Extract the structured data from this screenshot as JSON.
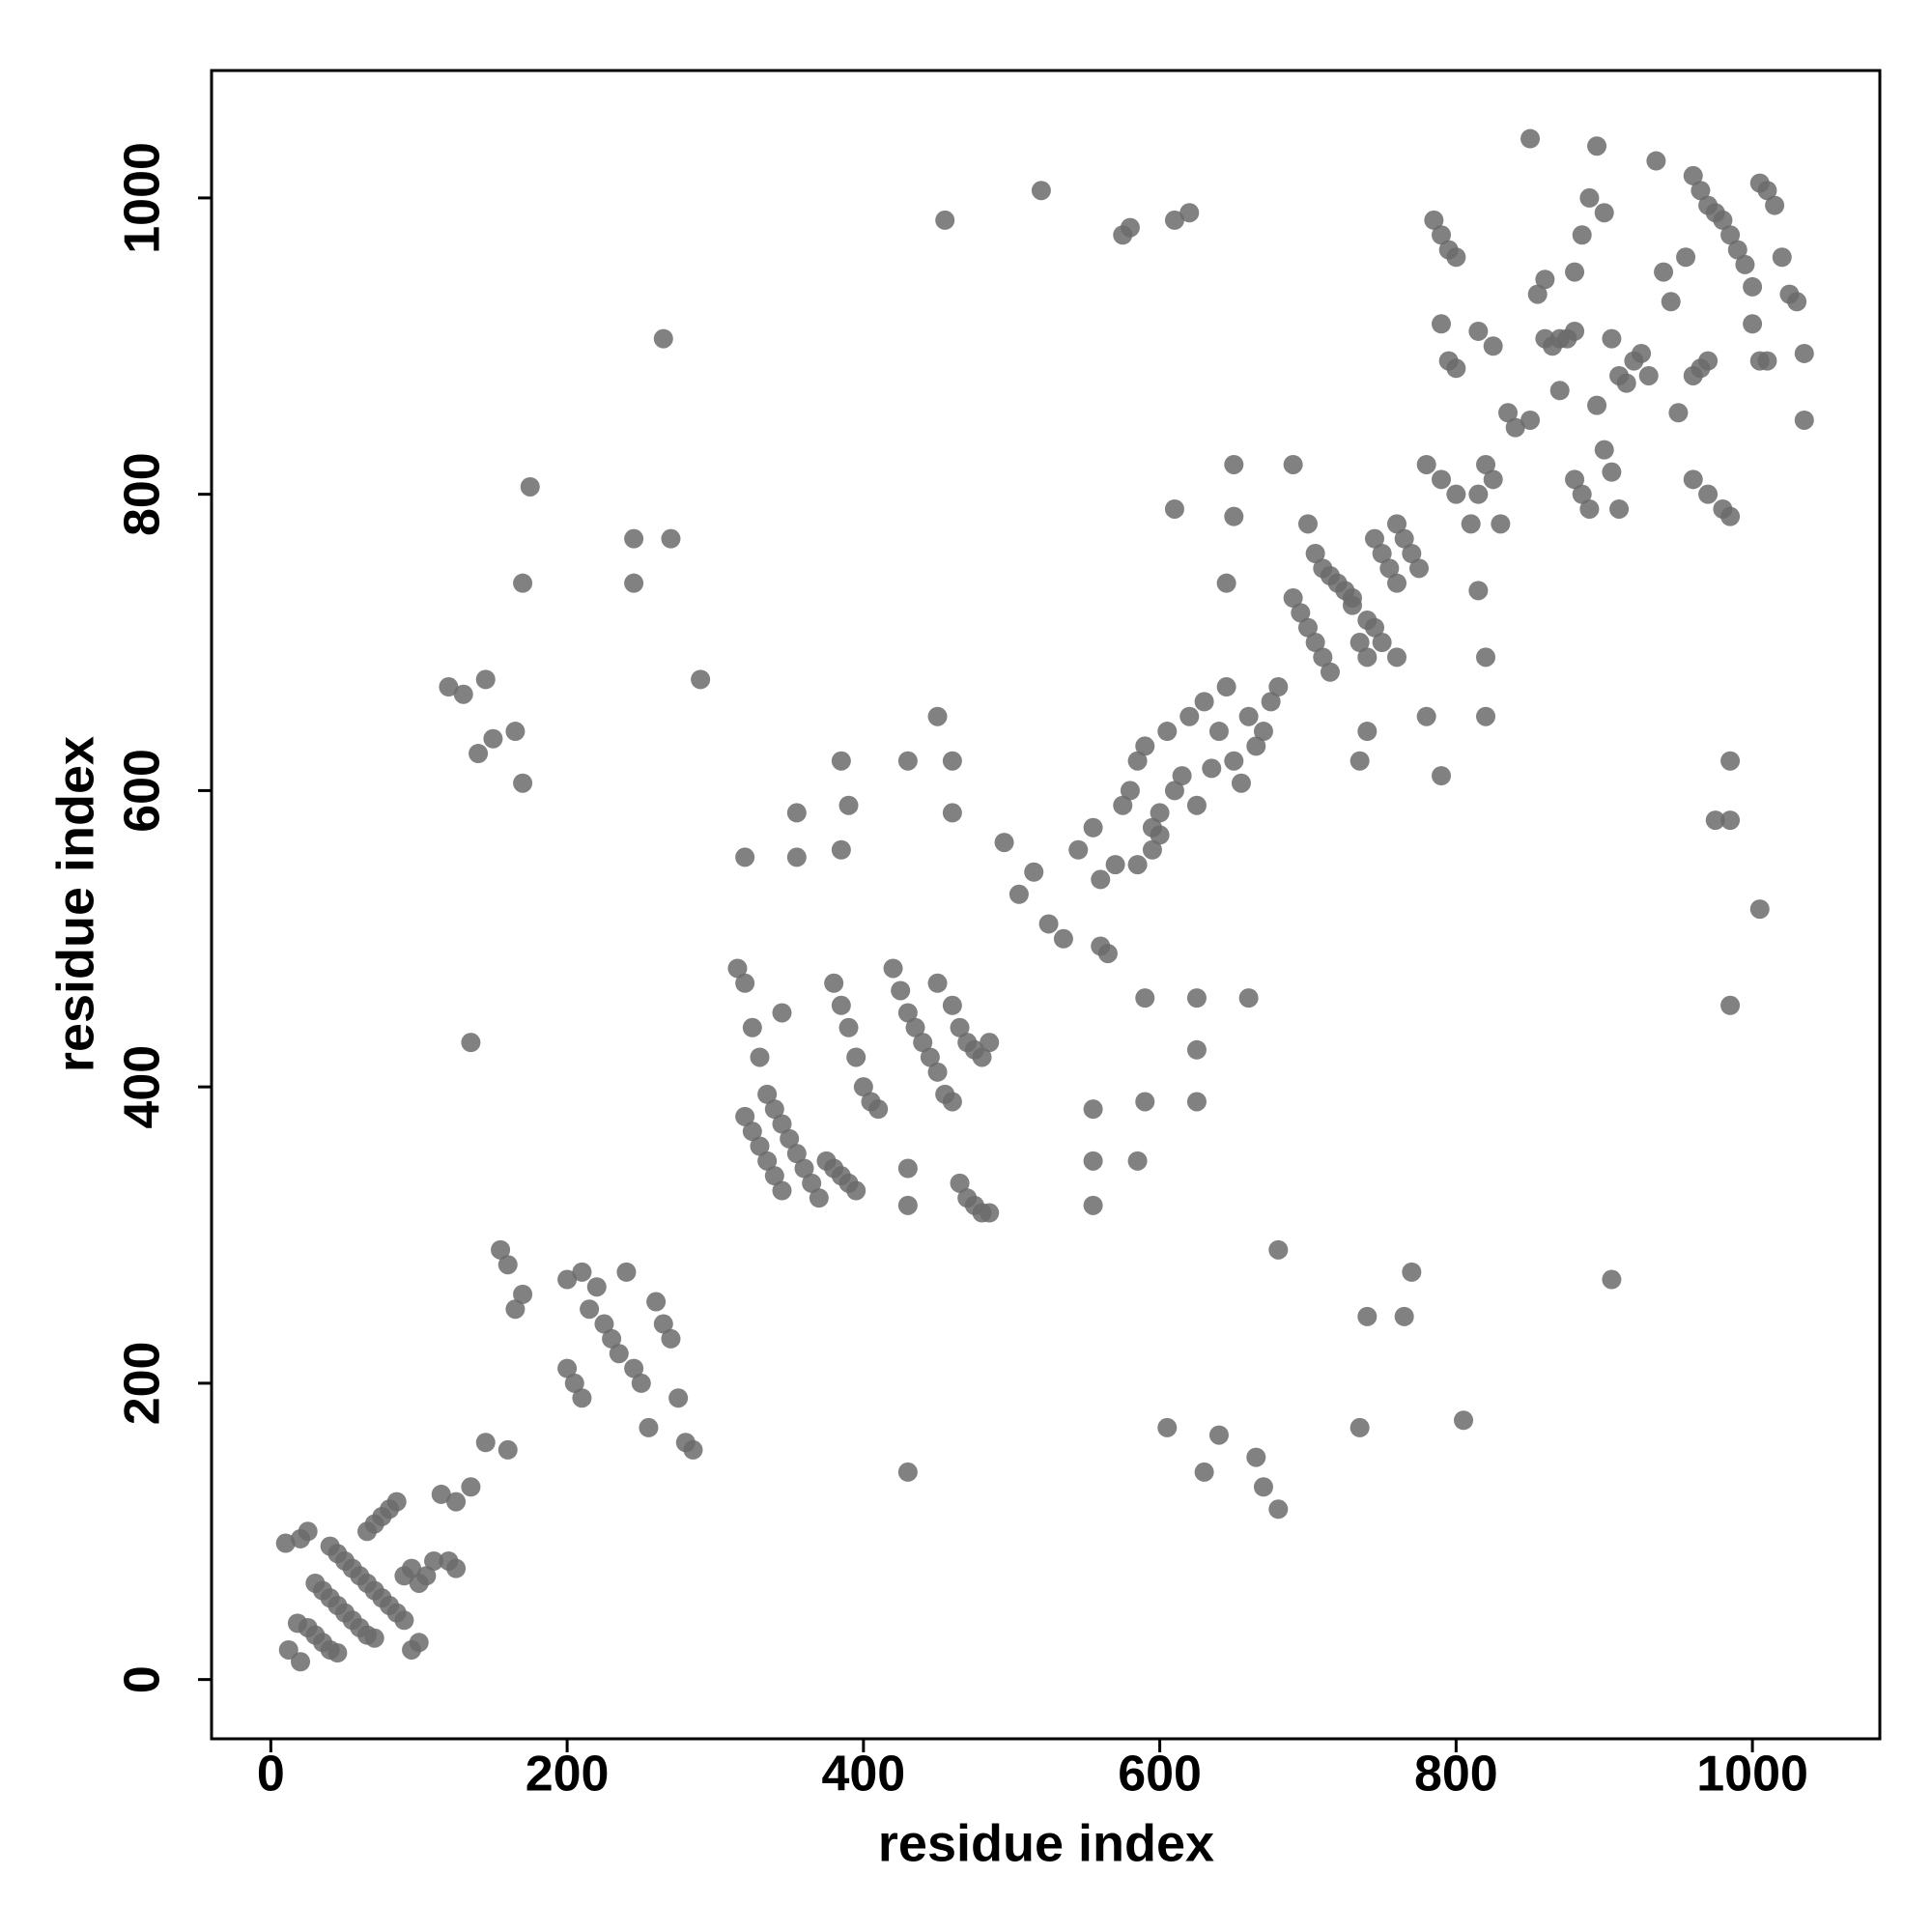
{
  "chart_data": {
    "type": "scatter",
    "x_label": "residue index",
    "y_label": "residue index",
    "xlim": [
      -40,
      1086
    ],
    "ylim": [
      -40,
      1086
    ],
    "xticks": [
      0,
      200,
      400,
      600,
      800,
      1000
    ],
    "yticks": [
      0,
      200,
      400,
      600,
      800,
      1000
    ],
    "grid": false,
    "color": "#6b6b6b",
    "x": [
      12,
      20,
      18,
      25,
      30,
      35,
      40,
      45,
      10,
      20,
      25,
      30,
      35,
      40,
      45,
      50,
      55,
      60,
      65,
      70,
      40,
      45,
      50,
      55,
      60,
      65,
      70,
      75,
      80,
      85,
      90,
      95,
      100,
      105,
      110,
      120,
      125,
      65,
      70,
      75,
      80,
      85,
      90,
      95,
      100,
      115,
      125,
      135,
      145,
      160,
      155,
      160,
      165,
      170,
      200,
      205,
      210,
      215,
      220,
      225,
      230,
      235,
      240,
      245,
      250,
      255,
      260,
      265,
      270,
      275,
      280,
      285,
      200,
      210,
      315,
      320,
      325,
      330,
      335,
      340,
      345,
      350,
      355,
      360,
      365,
      370,
      375,
      380,
      385,
      390,
      395,
      320,
      325,
      330,
      335,
      340,
      345,
      380,
      385,
      390,
      395,
      400,
      405,
      410,
      420,
      425,
      430,
      435,
      440,
      445,
      450,
      455,
      460,
      465,
      470,
      475,
      480,
      485,
      450,
      460,
      465,
      470,
      475,
      480,
      485,
      430,
      430,
      345,
      385,
      390,
      385,
      355,
      355,
      320,
      430,
      460,
      460,
      450,
      430,
      495,
      505,
      515,
      525,
      535,
      545,
      555,
      560,
      570,
      575,
      580,
      585,
      590,
      595,
      600,
      605,
      610,
      615,
      620,
      625,
      630,
      635,
      640,
      645,
      650,
      655,
      660,
      665,
      670,
      675,
      680,
      560,
      565,
      585,
      595,
      600,
      690,
      700,
      705,
      710,
      715,
      720,
      725,
      730,
      735,
      740,
      745,
      750,
      755,
      760,
      765,
      770,
      775,
      690,
      695,
      700,
      705,
      710,
      715,
      730,
      740,
      745,
      750,
      760,
      780,
      790,
      800,
      810,
      815,
      820,
      825,
      830,
      760,
      780,
      790,
      815,
      820,
      820,
      740,
      735,
      650,
      645,
      650,
      610,
      785,
      790,
      795,
      800,
      790,
      795,
      800,
      815,
      825,
      835,
      840,
      850,
      855,
      860,
      865,
      870,
      875,
      880,
      885,
      890,
      895,
      900,
      905,
      910,
      915,
      920,
      925,
      930,
      935,
      940,
      945,
      950,
      955,
      960,
      965,
      970,
      975,
      980,
      985,
      990,
      995,
      1000,
      1005,
      1010,
      1015,
      1020,
      1025,
      1030,
      1035,
      1035,
      960,
      965,
      970,
      960,
      970,
      980,
      985,
      880,
      885,
      890,
      900,
      905,
      910,
      895,
      850,
      1000,
      1005,
      1010,
      860,
      870,
      880,
      985,
      985,
      975,
      1005,
      985,
      905,
      805,
      770,
      765,
      740,
      735,
      680,
      680,
      670,
      665,
      640,
      630,
      605,
      620,
      610,
      580,
      575,
      520,
      455,
      265,
      270,
      245,
      245,
      175,
      170,
      170,
      165,
      150,
      140,
      120,
      130,
      145,
      135,
      290,
      590,
      625,
      625,
      625,
      590,
      585,
      555,
      555,
      555,
      660
    ],
    "values": [
      20,
      12,
      38,
      35,
      30,
      25,
      20,
      18,
      92,
      95,
      100,
      65,
      60,
      55,
      50,
      45,
      40,
      35,
      30,
      28,
      90,
      85,
      80,
      75,
      70,
      65,
      60,
      55,
      50,
      45,
      40,
      20,
      25,
      70,
      80,
      80,
      75,
      100,
      105,
      110,
      115,
      120,
      70,
      75,
      65,
      125,
      120,
      130,
      160,
      155,
      290,
      280,
      250,
      260,
      210,
      200,
      190,
      250,
      265,
      240,
      230,
      220,
      275,
      210,
      200,
      170,
      255,
      240,
      230,
      190,
      160,
      155,
      270,
      275,
      480,
      470,
      440,
      420,
      395,
      385,
      375,
      365,
      355,
      345,
      335,
      325,
      350,
      345,
      340,
      335,
      330,
      380,
      370,
      360,
      350,
      340,
      330,
      470,
      455,
      440,
      420,
      400,
      390,
      385,
      480,
      465,
      450,
      440,
      430,
      420,
      410,
      395,
      390,
      440,
      430,
      425,
      420,
      430,
      470,
      455,
      335,
      325,
      320,
      315,
      315,
      320,
      345,
      450,
      560,
      590,
      620,
      585,
      555,
      555,
      620,
      620,
      585,
      650,
      140,
      565,
      530,
      545,
      510,
      500,
      560,
      575,
      540,
      550,
      590,
      600,
      620,
      630,
      575,
      585,
      640,
      600,
      610,
      650,
      590,
      660,
      615,
      640,
      670,
      620,
      605,
      650,
      630,
      640,
      660,
      670,
      495,
      490,
      550,
      560,
      570,
      820,
      780,
      760,
      750,
      745,
      740,
      735,
      730,
      700,
      690,
      770,
      760,
      750,
      780,
      770,
      760,
      750,
      730,
      720,
      710,
      700,
      690,
      680,
      725,
      715,
      710,
      700,
      740,
      820,
      810,
      800,
      780,
      800,
      820,
      810,
      780,
      690,
      650,
      610,
      735,
      690,
      650,
      640,
      620,
      820,
      740,
      785,
      790,
      985,
      975,
      965,
      960,
      915,
      890,
      885,
      910,
      900,
      855,
      845,
      850,
      935,
      945,
      900,
      870,
      905,
      950,
      975,
      1000,
      1035,
      990,
      905,
      880,
      875,
      890,
      895,
      880,
      1025,
      950,
      930,
      855,
      960,
      1015,
      1005,
      995,
      990,
      985,
      975,
      965,
      955,
      940,
      1010,
      1005,
      995,
      960,
      935,
      930,
      895,
      850,
      880,
      885,
      890,
      810,
      800,
      790,
      785,
      810,
      800,
      790,
      830,
      815,
      790,
      860,
      1040,
      915,
      890,
      890,
      905,
      905,
      910,
      620,
      580,
      580,
      520,
      455,
      270,
      175,
      275,
      245,
      245,
      170,
      290,
      115,
      130,
      150,
      165,
      140,
      170,
      990,
      985,
      980,
      975,
      1005,
      985,
      905,
      770,
      770,
      740,
      805,
      740,
      605,
      640,
      635,
      625,
      670,
      665,
      675,
      430,
      675,
      460,
      460,
      425,
      390,
      390,
      350,
      385,
      350,
      320,
      460
    ]
  }
}
